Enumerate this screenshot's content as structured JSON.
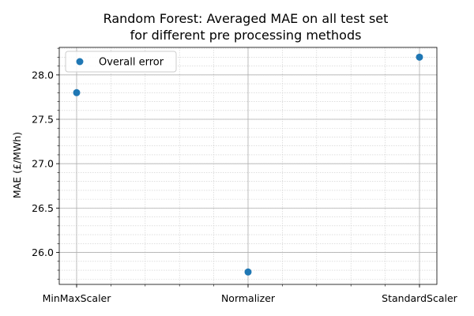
{
  "chart_data": {
    "type": "scatter",
    "title_line1": "Random Forest: Averaged MAE on all test set",
    "title_line2": "for different pre processing methods",
    "xlabel": "",
    "ylabel": "MAE (£/MWh)",
    "categories": [
      "MinMaxScaler",
      "Normalizer",
      "StandardScaler"
    ],
    "series": [
      {
        "name": "Overall error",
        "color": "#1f77b4",
        "values": [
          27.8,
          25.78,
          28.2
        ]
      }
    ],
    "ylim": [
      25.64,
      28.31
    ],
    "yticks": [
      {
        "value": 26.0,
        "label": "26.0"
      },
      {
        "value": 26.5,
        "label": "26.5"
      },
      {
        "value": 27.0,
        "label": "27.0"
      },
      {
        "value": 27.5,
        "label": "27.5"
      },
      {
        "value": 28.0,
        "label": "28.0"
      }
    ],
    "grid": true,
    "minor_grid": true,
    "legend_position": "upper-left"
  }
}
